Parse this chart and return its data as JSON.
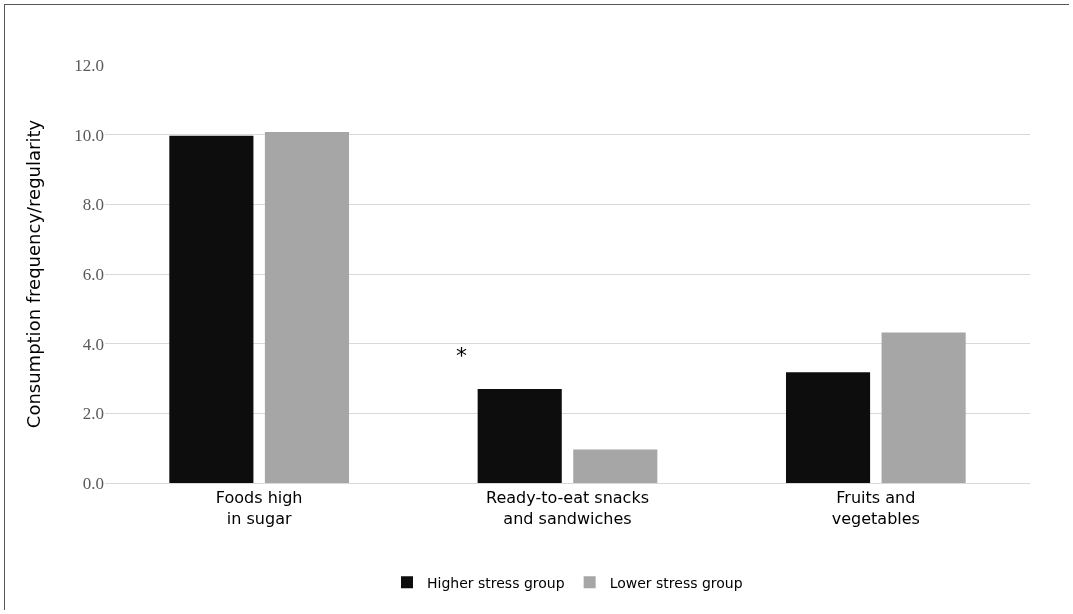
{
  "chart_data": {
    "type": "bar",
    "ylabel": "Consumption frequency/regularity",
    "categories": [
      "Foods high in sugar",
      "Ready-to-eat snacks and sandwiches",
      "Fruits and vegetables"
    ],
    "series": [
      {
        "name": "Higher stress group",
        "color": "#0d0d0d",
        "values": [
          9.97,
          2.7,
          3.18
        ]
      },
      {
        "name": "Lower stress group",
        "color": "#a6a6a6",
        "values": [
          10.08,
          0.96,
          4.32
        ]
      }
    ],
    "annotations": [
      "*"
    ],
    "ylim": [
      0,
      12
    ],
    "yticks": [
      {
        "value": 0,
        "label": "0.0"
      },
      {
        "value": 2,
        "label": "2.0"
      },
      {
        "value": 4,
        "label": "4.0"
      },
      {
        "value": 6,
        "label": "6.0"
      },
      {
        "value": 8,
        "label": "8.0"
      },
      {
        "value": 10,
        "label": "10.0"
      },
      {
        "value": 12,
        "label": "12.0"
      }
    ],
    "grid": "y",
    "legend": "bottom"
  }
}
